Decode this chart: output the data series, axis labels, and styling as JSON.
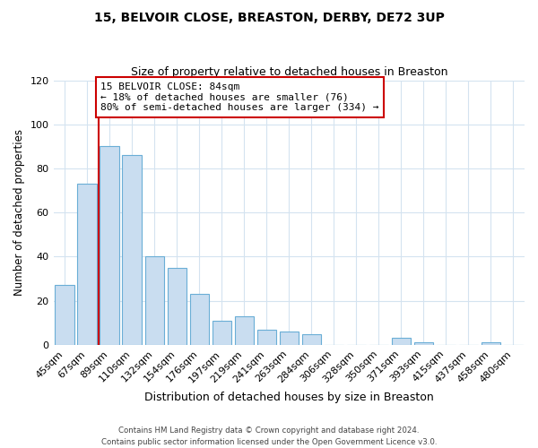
{
  "title1": "15, BELVOIR CLOSE, BREASTON, DERBY, DE72 3UP",
  "title2": "Size of property relative to detached houses in Breaston",
  "xlabel": "Distribution of detached houses by size in Breaston",
  "ylabel": "Number of detached properties",
  "bar_labels": [
    "45sqm",
    "67sqm",
    "89sqm",
    "110sqm",
    "132sqm",
    "154sqm",
    "176sqm",
    "197sqm",
    "219sqm",
    "241sqm",
    "263sqm",
    "284sqm",
    "306sqm",
    "328sqm",
    "350sqm",
    "371sqm",
    "393sqm",
    "415sqm",
    "437sqm",
    "458sqm",
    "480sqm"
  ],
  "bar_values": [
    27,
    73,
    90,
    86,
    40,
    35,
    23,
    11,
    13,
    7,
    6,
    5,
    0,
    0,
    0,
    3,
    1,
    0,
    0,
    1,
    0
  ],
  "bar_color": "#c9ddf0",
  "bar_edge_color": "#6aaed6",
  "vline_color": "#cc0000",
  "annotation_title": "15 BELVOIR CLOSE: 84sqm",
  "annotation_line1": "← 18% of detached houses are smaller (76)",
  "annotation_line2": "80% of semi-detached houses are larger (334) →",
  "annotation_box_color": "#ffffff",
  "annotation_box_edge": "#cc0000",
  "ylim": [
    0,
    120
  ],
  "yticks": [
    0,
    20,
    40,
    60,
    80,
    100,
    120
  ],
  "footer1": "Contains HM Land Registry data © Crown copyright and database right 2024.",
  "footer2": "Contains public sector information licensed under the Open Government Licence v3.0.",
  "bg_color": "#ffffff",
  "grid_color": "#d4e3f0"
}
